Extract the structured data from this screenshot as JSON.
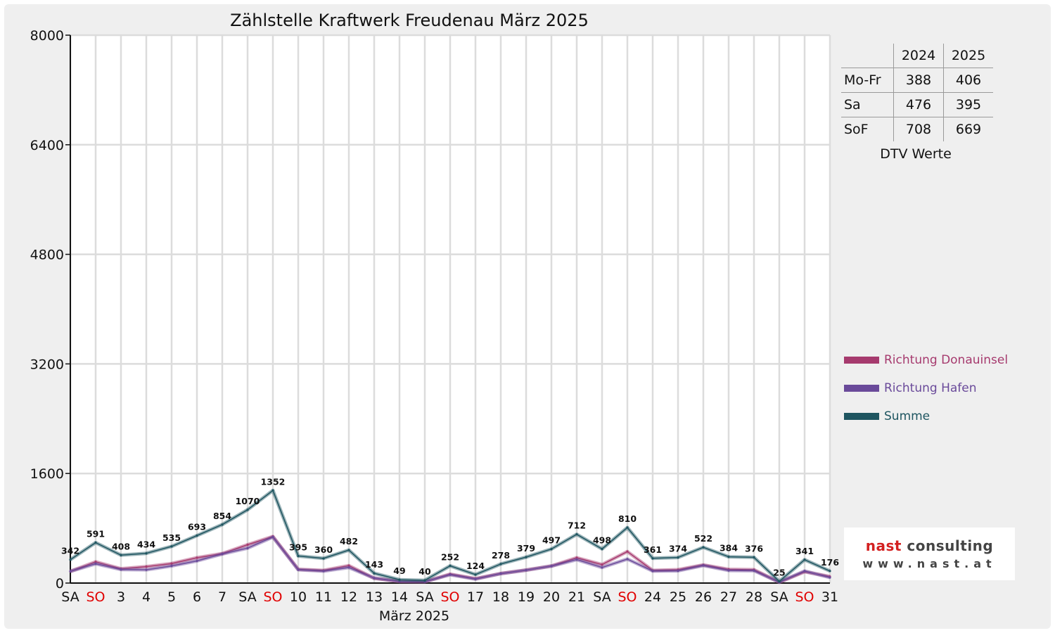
{
  "chart_data": {
    "type": "line",
    "title": "Zählstelle Kraftwerk Freudenau März 2025",
    "xlabel": "März 2025",
    "ylabel": "",
    "ylim": [
      0,
      8000
    ],
    "yticks": [
      0,
      1600,
      3200,
      4800,
      6400,
      8000
    ],
    "grid": true,
    "legend_position": "right",
    "categories": [
      "SA",
      "SO",
      "3",
      "4",
      "5",
      "6",
      "7",
      "SA",
      "SO",
      "10",
      "11",
      "12",
      "13",
      "14",
      "SA",
      "SO",
      "17",
      "18",
      "19",
      "20",
      "21",
      "SA",
      "SO",
      "24",
      "25",
      "26",
      "27",
      "28",
      "SA",
      "SO",
      "31"
    ],
    "weekend_label_color": "#e00000",
    "weekend_indices": [
      1,
      8,
      15,
      22,
      29
    ],
    "series": [
      {
        "name": "Richtung Donauinsel",
        "color": "#a63a6e",
        "values": [
          170,
          310,
          210,
          240,
          285,
          370,
          430,
          560,
          680,
          200,
          185,
          255,
          70,
          25,
          20,
          130,
          65,
          140,
          190,
          250,
          370,
          270,
          460,
          185,
          195,
          265,
          200,
          195,
          12,
          165,
          95
        ]
      },
      {
        "name": "Richtung Hafen",
        "color": "#6a4a9a",
        "values": [
          172,
          281,
          198,
          194,
          250,
          323,
          424,
          510,
          672,
          195,
          175,
          227,
          73,
          24,
          20,
          122,
          59,
          138,
          189,
          247,
          342,
          228,
          350,
          176,
          179,
          257,
          184,
          181,
          13,
          176,
          81
        ]
      },
      {
        "name": "Summe",
        "color": "#1e5560",
        "values": [
          342,
          591,
          408,
          434,
          535,
          693,
          854,
          1070,
          1352,
          395,
          360,
          482,
          143,
          49,
          40,
          252,
          124,
          278,
          379,
          497,
          712,
          498,
          810,
          361,
          374,
          522,
          384,
          376,
          25,
          341,
          176
        ]
      }
    ],
    "data_labels": [
      "342",
      "591",
      "408",
      "434",
      "535",
      "693",
      "854",
      "1070",
      "1352",
      "395",
      "360",
      "482",
      "143",
      "49",
      "40",
      "252",
      "124",
      "278",
      "379",
      "497",
      "712",
      "498",
      "810",
      "361",
      "374",
      "522",
      "384",
      "376",
      "25",
      "341",
      "176"
    ]
  },
  "dtv_table": {
    "headers": [
      "2024",
      "2025"
    ],
    "rows": [
      {
        "label": "Mo-Fr",
        "v2024": "388",
        "v2025": "406"
      },
      {
        "label": "Sa",
        "v2024": "476",
        "v2025": "395"
      },
      {
        "label": "SoF",
        "v2024": "708",
        "v2025": "669"
      }
    ],
    "caption": "DTV Werte"
  },
  "logo": {
    "brand_prefix": "nast",
    "brand_suffix": " consulting",
    "url": "www.nast.at",
    "prefix_color": "#d32020"
  }
}
